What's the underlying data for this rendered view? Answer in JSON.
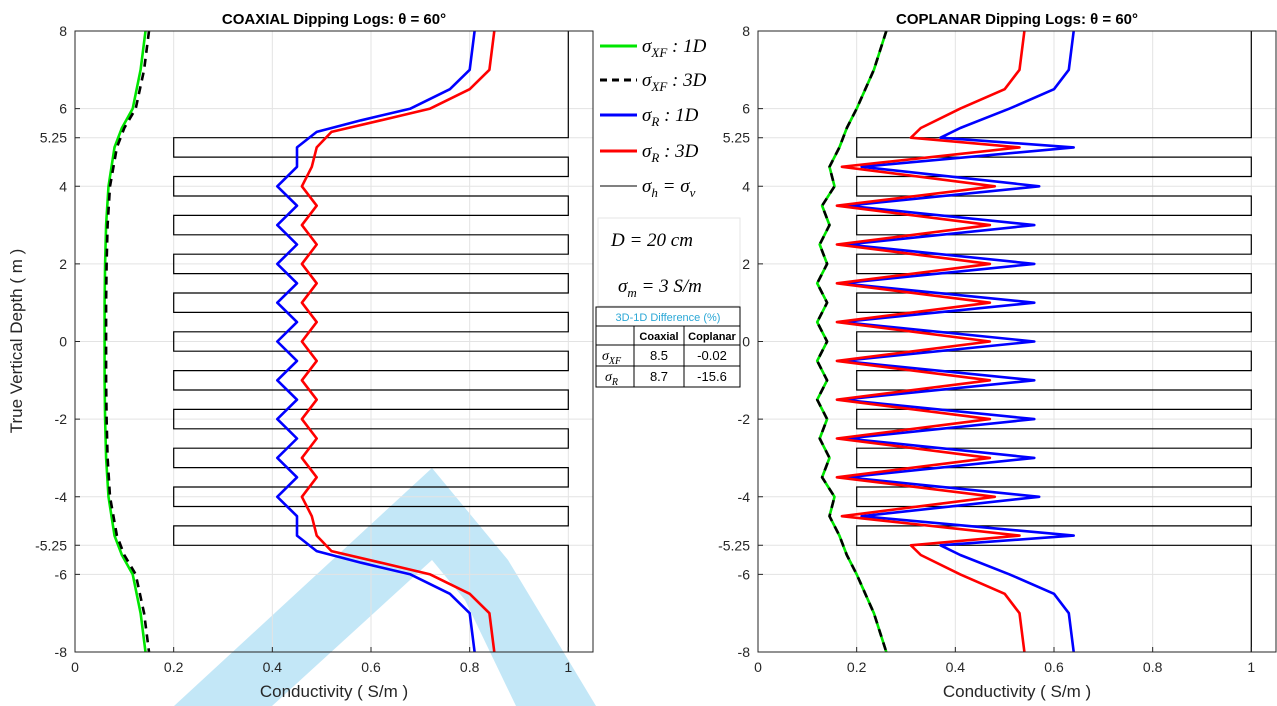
{
  "chart_data": [
    {
      "type": "line",
      "title": "COAXIAL Dipping Logs: θ = 60°",
      "xlabel": "Conductivity ( S/m )",
      "ylabel": "True Vertical Depth ( m )",
      "xlim": [
        0,
        1.05
      ],
      "ylim": [
        -8,
        8
      ],
      "xticks": [
        "0",
        "0.2",
        "0.4",
        "0.6",
        "0.8",
        "1"
      ],
      "yticks": [
        "-8",
        "-6",
        "-5.25",
        "-4",
        "-2",
        "0",
        "2",
        "4",
        "5.25",
        "6",
        "8"
      ],
      "grid": true,
      "layer_model": {
        "name": "σh = σv",
        "background_sigma": 1.0,
        "bed_sigma": 0.2,
        "bed_top": 5.25,
        "bed_bottom": -5.25,
        "beds": [
          [
            4.75,
            5.25
          ],
          [
            3.75,
            4.25
          ],
          [
            2.75,
            3.25
          ],
          [
            1.75,
            2.25
          ],
          [
            0.75,
            1.25
          ],
          [
            -0.25,
            0.25
          ],
          [
            -1.25,
            -0.75
          ],
          [
            -2.25,
            -1.75
          ],
          [
            -3.25,
            -2.75
          ],
          [
            -4.25,
            -3.75
          ],
          [
            -5.25,
            -4.75
          ]
        ]
      },
      "series": [
        {
          "name": "σXF : 1D",
          "color": "#00e600",
          "dash": "solid",
          "depth": [
            8,
            7,
            6,
            5.5,
            5,
            4,
            3,
            2,
            1,
            0,
            -1,
            -2,
            -3,
            -4,
            -5,
            -5.5,
            -6,
            -7,
            -8
          ],
          "values": [
            0.143,
            0.133,
            0.117,
            0.095,
            0.08,
            0.068,
            0.063,
            0.061,
            0.06,
            0.06,
            0.06,
            0.061,
            0.063,
            0.068,
            0.08,
            0.095,
            0.117,
            0.133,
            0.143
          ]
        },
        {
          "name": "σXF : 3D",
          "color": "#000000",
          "dash": "dashed",
          "depth": [
            8,
            7,
            6,
            5.5,
            5,
            4,
            3,
            2,
            1,
            0,
            -1,
            -2,
            -3,
            -4,
            -5,
            -5.5,
            -6,
            -7,
            -8
          ],
          "values": [
            0.15,
            0.14,
            0.123,
            0.1,
            0.085,
            0.071,
            0.066,
            0.064,
            0.063,
            0.063,
            0.063,
            0.064,
            0.066,
            0.071,
            0.085,
            0.1,
            0.123,
            0.14,
            0.15
          ]
        },
        {
          "name": "σR : 1D",
          "color": "#0000ff",
          "dash": "solid",
          "depth": [
            8,
            7,
            6.5,
            6,
            5.7,
            5.4,
            5.0,
            4.5,
            4.0,
            3.5,
            3.0,
            2.5,
            2.0,
            1.5,
            1.0,
            0.5,
            0.0,
            -0.5,
            -1.0,
            -1.5,
            -2.0,
            -2.5,
            -3.0,
            -3.5,
            -4.0,
            -4.5,
            -5.0,
            -5.4,
            -5.7,
            -6,
            -6.5,
            -7,
            -8
          ],
          "values": [
            0.81,
            0.8,
            0.76,
            0.68,
            0.58,
            0.49,
            0.45,
            0.45,
            0.41,
            0.45,
            0.41,
            0.45,
            0.41,
            0.45,
            0.41,
            0.45,
            0.41,
            0.45,
            0.41,
            0.45,
            0.41,
            0.45,
            0.41,
            0.45,
            0.41,
            0.45,
            0.45,
            0.49,
            0.58,
            0.68,
            0.76,
            0.8,
            0.81
          ]
        },
        {
          "name": "σR : 3D",
          "color": "#ff0000",
          "dash": "solid",
          "depth": [
            8,
            7,
            6.5,
            6,
            5.7,
            5.4,
            5.0,
            4.5,
            4.0,
            3.5,
            3.0,
            2.5,
            2.0,
            1.5,
            1.0,
            0.5,
            0.0,
            -0.5,
            -1.0,
            -1.5,
            -2.0,
            -2.5,
            -3.0,
            -3.5,
            -4.0,
            -4.5,
            -5.0,
            -5.4,
            -5.7,
            -6,
            -6.5,
            -7,
            -8
          ],
          "values": [
            0.85,
            0.84,
            0.8,
            0.72,
            0.62,
            0.52,
            0.49,
            0.48,
            0.46,
            0.49,
            0.46,
            0.49,
            0.46,
            0.49,
            0.46,
            0.49,
            0.46,
            0.49,
            0.46,
            0.49,
            0.46,
            0.49,
            0.46,
            0.49,
            0.46,
            0.48,
            0.49,
            0.52,
            0.62,
            0.72,
            0.8,
            0.84,
            0.85
          ]
        }
      ]
    },
    {
      "type": "line",
      "title": "COPLANAR Dipping Logs: θ = 60°",
      "xlabel": "Conductivity ( S/m )",
      "xlim": [
        0,
        1.05
      ],
      "ylim": [
        -8,
        8
      ],
      "xticks": [
        "0",
        "0.2",
        "0.4",
        "0.6",
        "0.8",
        "1"
      ],
      "yticks": [
        "-8",
        "-6",
        "-5.25",
        "-4",
        "-2",
        "0",
        "2",
        "4",
        "5.25",
        "6",
        "8"
      ],
      "grid": true,
      "layer_model": {
        "name": "σh = σv",
        "background_sigma": 1.0,
        "bed_sigma": 0.2,
        "bed_top": 5.25,
        "bed_bottom": -5.25,
        "beds": [
          [
            4.75,
            5.25
          ],
          [
            3.75,
            4.25
          ],
          [
            2.75,
            3.25
          ],
          [
            1.75,
            2.25
          ],
          [
            0.75,
            1.25
          ],
          [
            -0.25,
            0.25
          ],
          [
            -1.25,
            -0.75
          ],
          [
            -2.25,
            -1.75
          ],
          [
            -3.25,
            -2.75
          ],
          [
            -4.25,
            -3.75
          ],
          [
            -5.25,
            -4.75
          ]
        ]
      },
      "series": [
        {
          "name": "σXF : 1D",
          "color": "#00e600",
          "dash": "solid",
          "depth": [
            8,
            7,
            6,
            5.5,
            5,
            4.5,
            4,
            3.5,
            3,
            2.5,
            2,
            1.5,
            1,
            0.5,
            0,
            -0.5,
            -1,
            -1.5,
            -2,
            -2.5,
            -3,
            -3.5,
            -4,
            -4.5,
            -5,
            -5.5,
            -6,
            -7,
            -8
          ],
          "values": [
            0.26,
            0.235,
            0.2,
            0.18,
            0.165,
            0.145,
            0.155,
            0.13,
            0.145,
            0.125,
            0.14,
            0.12,
            0.14,
            0.12,
            0.14,
            0.12,
            0.14,
            0.12,
            0.14,
            0.125,
            0.145,
            0.13,
            0.155,
            0.145,
            0.165,
            0.18,
            0.2,
            0.235,
            0.26
          ]
        },
        {
          "name": "σXF : 3D",
          "color": "#000000",
          "dash": "dashed",
          "depth": [
            8,
            7,
            6,
            5.5,
            5,
            4.5,
            4,
            3.5,
            3,
            2.5,
            2,
            1.5,
            1,
            0.5,
            0,
            -0.5,
            -1,
            -1.5,
            -2,
            -2.5,
            -3,
            -3.5,
            -4,
            -4.5,
            -5,
            -5.5,
            -6,
            -7,
            -8
          ],
          "values": [
            0.26,
            0.235,
            0.2,
            0.18,
            0.165,
            0.145,
            0.155,
            0.13,
            0.145,
            0.125,
            0.14,
            0.12,
            0.14,
            0.12,
            0.14,
            0.12,
            0.14,
            0.12,
            0.14,
            0.125,
            0.145,
            0.13,
            0.155,
            0.145,
            0.165,
            0.18,
            0.2,
            0.235,
            0.26
          ]
        },
        {
          "name": "σR : 1D",
          "color": "#0000ff",
          "dash": "solid",
          "depth": [
            8,
            7,
            6.5,
            6,
            5.5,
            5.25,
            5.0,
            4.5,
            4.0,
            3.5,
            3.0,
            2.5,
            2.0,
            1.5,
            1.0,
            0.5,
            0.0,
            -0.5,
            -1.0,
            -1.5,
            -2.0,
            -2.5,
            -3.0,
            -3.5,
            -4.0,
            -4.5,
            -5.0,
            -5.25,
            -5.5,
            -6,
            -6.5,
            -7,
            -8
          ],
          "values": [
            0.64,
            0.63,
            0.6,
            0.51,
            0.41,
            0.37,
            0.64,
            0.21,
            0.57,
            0.18,
            0.56,
            0.18,
            0.56,
            0.17,
            0.56,
            0.17,
            0.56,
            0.17,
            0.56,
            0.17,
            0.56,
            0.18,
            0.56,
            0.18,
            0.57,
            0.21,
            0.64,
            0.37,
            0.41,
            0.51,
            0.6,
            0.63,
            0.64
          ]
        },
        {
          "name": "σR : 3D",
          "color": "#ff0000",
          "dash": "solid",
          "depth": [
            8,
            7,
            6.5,
            6,
            5.5,
            5.25,
            5.0,
            4.5,
            4.0,
            3.5,
            3.0,
            2.5,
            2.0,
            1.5,
            1.0,
            0.5,
            0.0,
            -0.5,
            -1.0,
            -1.5,
            -2.0,
            -2.5,
            -3.0,
            -3.5,
            -4.0,
            -4.5,
            -5.0,
            -5.25,
            -5.5,
            -6,
            -6.5,
            -7,
            -8
          ],
          "values": [
            0.54,
            0.53,
            0.5,
            0.41,
            0.33,
            0.31,
            0.53,
            0.17,
            0.48,
            0.16,
            0.47,
            0.16,
            0.47,
            0.16,
            0.47,
            0.16,
            0.47,
            0.16,
            0.47,
            0.16,
            0.47,
            0.16,
            0.47,
            0.16,
            0.48,
            0.17,
            0.53,
            0.31,
            0.33,
            0.41,
            0.5,
            0.53,
            0.54
          ]
        }
      ]
    }
  ],
  "legend": {
    "placement": "right of left panel",
    "entries": [
      {
        "label": "σXF : 1D",
        "color": "#00e600",
        "dash": "solid"
      },
      {
        "label": "σXF : 3D",
        "color": "#000000",
        "dash": "dashed"
      },
      {
        "label": "σR : 1D",
        "color": "#0000ff",
        "dash": "solid"
      },
      {
        "label": "σR : 3D",
        "color": "#ff0000",
        "dash": "solid"
      },
      {
        "label": "σh = σv",
        "color": "#000000",
        "dash": "thin"
      }
    ]
  },
  "annotations": {
    "spacing": "D = 20 cm",
    "mud": "σm = 3 S/m"
  },
  "difference_table": {
    "title": "3D-1D Difference (%)",
    "title_color": "#2aa7d6",
    "headers": [
      "",
      "Coaxial",
      "Coplanar"
    ],
    "rows": [
      {
        "label": "σXF",
        "coaxial": "8.5",
        "coplanar": "-0.02"
      },
      {
        "label": "σR",
        "coaxial": "8.7",
        "coplanar": "-15.6"
      }
    ]
  },
  "watermark": {
    "color": "#b9e3f6"
  }
}
